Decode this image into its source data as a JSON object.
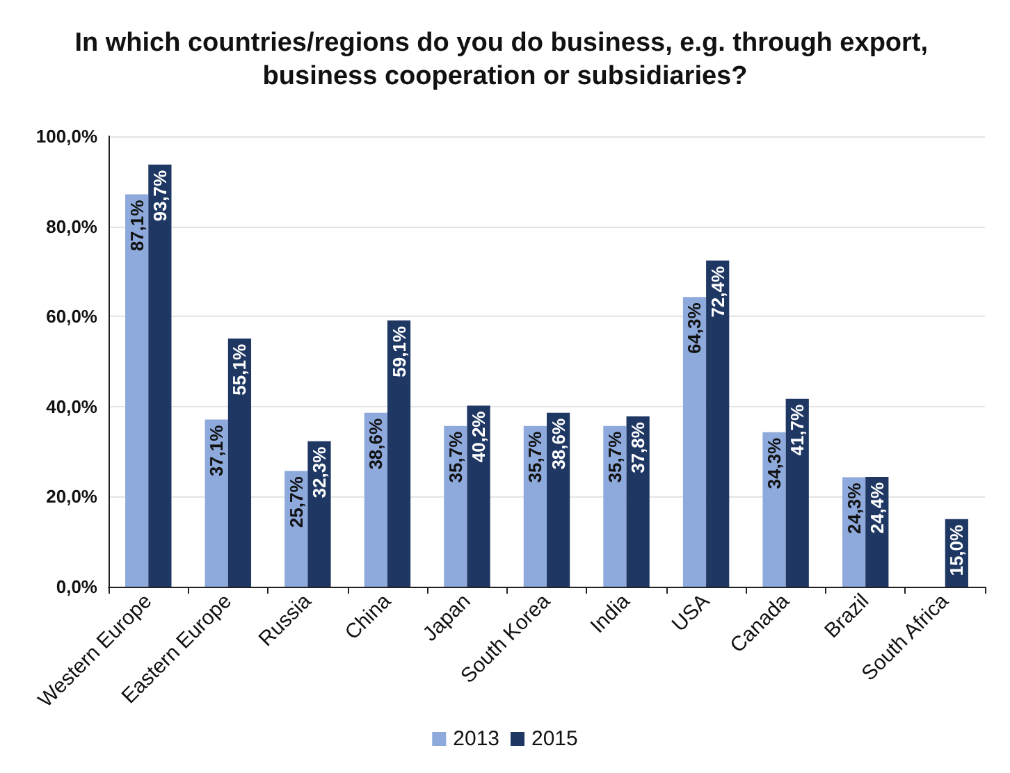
{
  "chart_data": {
    "type": "bar",
    "title": "In which countries/regions do you do business, e.g. through export, business cooperation or subsidiaries?",
    "categories": [
      "Western Europe",
      "Eastern Europe",
      "Russia",
      "China",
      "Japan",
      "South Korea",
      "India",
      "USA",
      "Canada",
      "Brazil",
      "South Africa"
    ],
    "series": [
      {
        "name": "2013",
        "color": "#8eaadc",
        "values": [
          87.1,
          37.1,
          25.7,
          38.6,
          35.7,
          35.7,
          35.7,
          64.3,
          34.3,
          24.3,
          null
        ],
        "value_labels": [
          "87,1%",
          "37,1%",
          "25,7%",
          "38,6%",
          "35,7%",
          "35,7%",
          "35,7%",
          "64,3%",
          "34,3%",
          "24,3%",
          null
        ]
      },
      {
        "name": "2015",
        "color": "#1f3763",
        "values": [
          93.7,
          55.1,
          32.3,
          59.1,
          40.2,
          38.6,
          37.8,
          72.4,
          41.7,
          24.4,
          15.0
        ],
        "value_labels": [
          "93,7%",
          "55,1%",
          "32,3%",
          "59,1%",
          "40,2%",
          "38,6%",
          "37,8%",
          "72,4%",
          "41,7%",
          "24,4%",
          "15,0%"
        ]
      }
    ],
    "ylim": [
      0,
      100
    ],
    "yticks": [
      {
        "value": 0,
        "label": "0,0%"
      },
      {
        "value": 20,
        "label": "20,0%"
      },
      {
        "value": 40,
        "label": "40,0%"
      },
      {
        "value": 60,
        "label": "60,0%"
      },
      {
        "value": 80,
        "label": "80,0%"
      },
      {
        "value": 100,
        "label": "100,0%"
      }
    ],
    "grid": "y",
    "legend": "bottom"
  }
}
